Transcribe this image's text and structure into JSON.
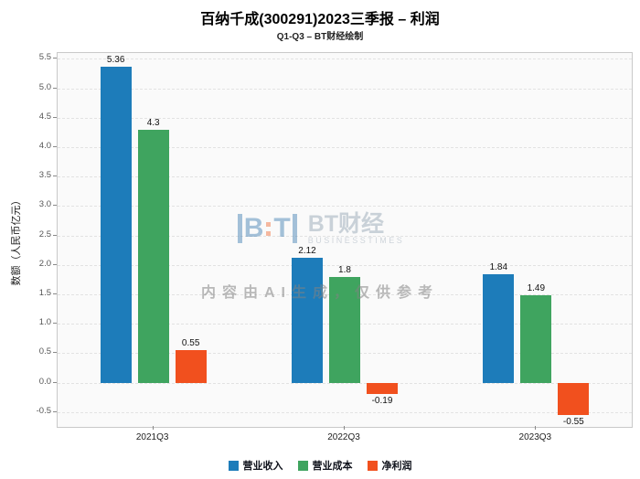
{
  "title": "百纳千成(300291)2023三季报 – 利润",
  "subtitle": "Q1-Q3 – BT财经绘制",
  "watermark": {
    "logo_letter_1": "B",
    "logo_letter_2": "T",
    "logo_text": "BT财经",
    "logo_sub": "BUSINESSTIMES",
    "ai_note": "内容由AI生成，仅供参考"
  },
  "chart_data": {
    "type": "bar",
    "title": "百纳千成(300291)2023三季报 – 利润",
    "subtitle": "Q1-Q3 – BT财经绘制",
    "categories": [
      "2021Q3",
      "2022Q3",
      "2023Q3"
    ],
    "series": [
      {
        "name": "营业收入",
        "color": "#1d7cba",
        "values": [
          5.36,
          2.12,
          1.84
        ]
      },
      {
        "name": "营业成本",
        "color": "#3fa45f",
        "values": [
          4.3,
          1.8,
          1.49
        ]
      },
      {
        "name": "净利润",
        "color": "#f1501e",
        "values": [
          0.55,
          -0.19,
          -0.55
        ]
      }
    ],
    "xlabel": "",
    "ylabel": "数额（人民币亿元）",
    "ylim": [
      -0.75,
      5.6
    ],
    "yticks": {
      "min": -0.5,
      "max": 5.5,
      "step": 0.5
    },
    "grid": true,
    "legend_position": "bottom"
  }
}
